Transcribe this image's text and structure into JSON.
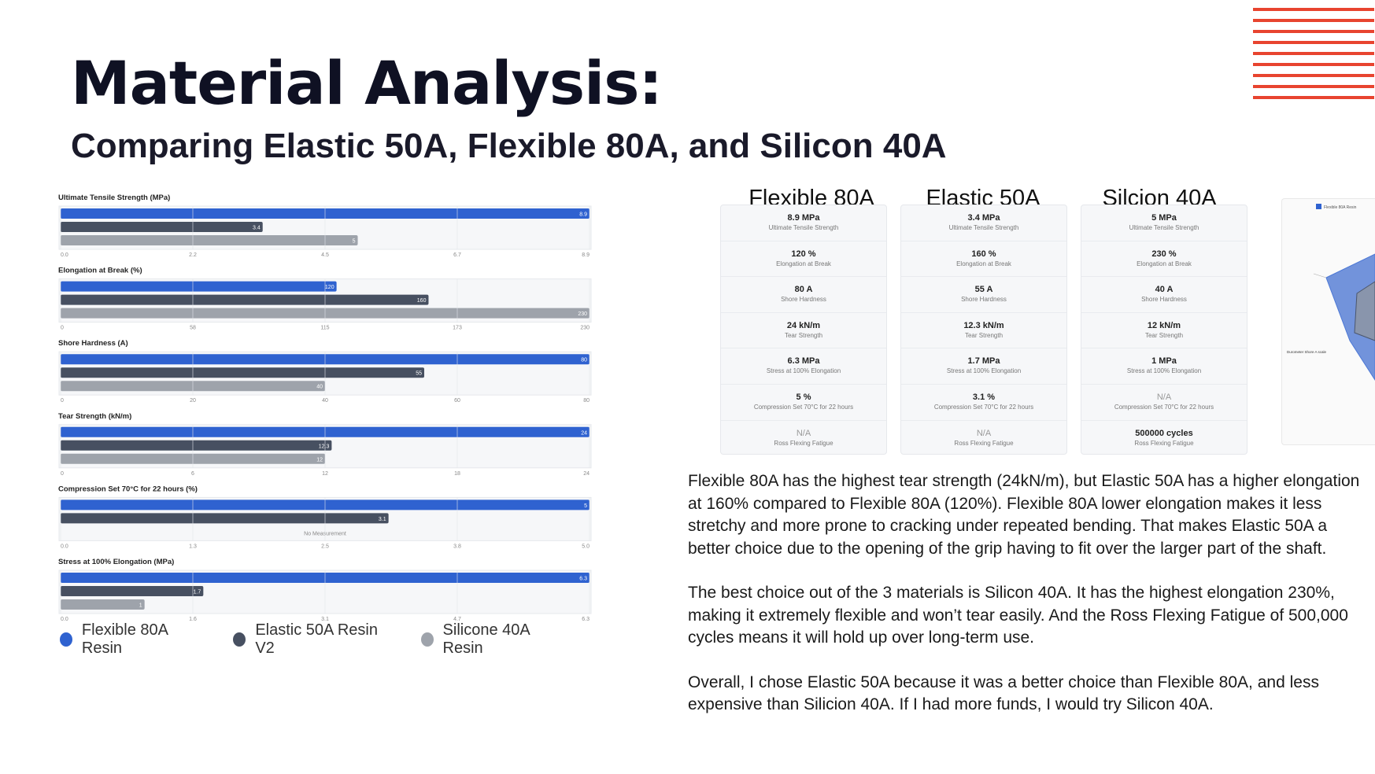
{
  "title": "Material Analysis:",
  "subtitle": "Comparing Elastic 50A, Flexible 80A, and Silicon 40A",
  "colors": {
    "flexible": "#2f62d0",
    "elastic": "#475061",
    "silicone": "#9ea3ab",
    "accent": "#e8442f"
  },
  "chart_data": {
    "type": "bar",
    "orientation": "horizontal",
    "legend_position": "bottom",
    "series_names": [
      "Flexible 80A Resin",
      "Elastic 50A Resin V2",
      "Silicone 40A Resin"
    ],
    "charts": [
      {
        "title": "Ultimate Tensile Strength (MPa)",
        "values": [
          8.9,
          3.4,
          5
        ],
        "labels": [
          "8.9",
          "3.4",
          "5"
        ],
        "xlim": [
          0,
          8.9
        ],
        "ticks": [
          "0.0",
          "2.2",
          "4.5",
          "6.7",
          "8.9"
        ],
        "no_measure": ""
      },
      {
        "title": "Elongation at Break (%)",
        "values": [
          120,
          160,
          230
        ],
        "labels": [
          "120",
          "160",
          "230"
        ],
        "xlim": [
          0,
          230
        ],
        "ticks": [
          "0",
          "58",
          "115",
          "173",
          "230"
        ],
        "no_measure": ""
      },
      {
        "title": "Shore Hardness (A)",
        "values": [
          80,
          55,
          40
        ],
        "labels": [
          "80",
          "55",
          "40"
        ],
        "xlim": [
          0,
          80
        ],
        "ticks": [
          "0",
          "20",
          "40",
          "60",
          "80"
        ],
        "no_measure": ""
      },
      {
        "title": "Tear Strength (kN/m)",
        "values": [
          24,
          12.3,
          12
        ],
        "labels": [
          "24",
          "12.3",
          "12"
        ],
        "xlim": [
          0,
          24
        ],
        "ticks": [
          "0",
          "6",
          "12",
          "18",
          "24"
        ],
        "no_measure": ""
      },
      {
        "title": "Compression Set 70°C for 22 hours (%)",
        "values": [
          5,
          3.1,
          null
        ],
        "labels": [
          "5",
          "3.1",
          ""
        ],
        "xlim": [
          0,
          5
        ],
        "ticks": [
          "0.0",
          "1.3",
          "2.5",
          "3.8",
          "5.0"
        ],
        "no_measure": "No Measurement"
      },
      {
        "title": "Stress at 100% Elongation (MPa)",
        "values": [
          6.3,
          1.7,
          1
        ],
        "labels": [
          "6.3",
          "1.7",
          "1"
        ],
        "xlim": [
          0,
          6.3
        ],
        "ticks": [
          "0.0",
          "1.6",
          "3.1",
          "4.7",
          "6.3"
        ],
        "no_measure": ""
      }
    ]
  },
  "table": {
    "columns": [
      {
        "name": "Flexible 80A",
        "cells": [
          {
            "value": "8.9 MPa",
            "label": "Ultimate Tensile Strength"
          },
          {
            "value": "120 %",
            "label": "Elongation at Break"
          },
          {
            "value": "80 A",
            "label": "Shore Hardness"
          },
          {
            "value": "24 kN/m",
            "label": "Tear Strength"
          },
          {
            "value": "6.3 MPa",
            "label": "Stress at 100% Elongation"
          },
          {
            "value": "5 %",
            "label": "Compression Set 70°C for 22 hours"
          },
          {
            "value": "N/A",
            "label": "Ross Flexing Fatigue"
          }
        ]
      },
      {
        "name": "Elastic 50A",
        "cells": [
          {
            "value": "3.4 MPa",
            "label": "Ultimate Tensile Strength"
          },
          {
            "value": "160 %",
            "label": "Elongation at Break"
          },
          {
            "value": "55 A",
            "label": "Shore Hardness"
          },
          {
            "value": "12.3 kN/m",
            "label": "Tear Strength"
          },
          {
            "value": "1.7 MPa",
            "label": "Stress at 100% Elongation"
          },
          {
            "value": "3.1 %",
            "label": "Compression Set 70°C for 22 hours"
          },
          {
            "value": "N/A",
            "label": "Ross Flexing Fatigue"
          }
        ]
      },
      {
        "name": "Silcion 40A",
        "cells": [
          {
            "value": "5 MPa",
            "label": "Ultimate Tensile Strength"
          },
          {
            "value": "230 %",
            "label": "Elongation at Break"
          },
          {
            "value": "40 A",
            "label": "Shore Hardness"
          },
          {
            "value": "12 kN/m",
            "label": "Tear Strength"
          },
          {
            "value": "1 MPa",
            "label": "Stress at 100% Elongation"
          },
          {
            "value": "N/A",
            "label": "Compression Set 70°C for 22 hours"
          },
          {
            "value": "500000 cycles",
            "label": "Ross Flexing Fatigue"
          }
        ]
      }
    ]
  },
  "radar": {
    "legend": "Flexible 80A Resin",
    "axis_label": "Durometer Shore A scale"
  },
  "paragraphs": [
    "Flexible 80A has the highest tear strength (24kN/m), but Elastic 50A has a higher elongation at 160% compared to Flexible 80A (120%). Flexible 80A lower elongation makes it less stretchy and more prone to cracking under repeated bending. That makes Elastic 50A a better choice due to the opening of the grip having to fit over the larger part of the shaft.",
    "The best choice out of the 3 materials is Silicon 40A. It has the highest elongation 230%, making it extremely flexible and won’t tear easily. And the Ross Flexing Fatigue of 500,000 cycles means it will hold up over long-term use.",
    "Overall, I chose Elastic 50A because it was a better choice than Flexible 80A, and less expensive than Silicion 40A. If I had more funds, I would try Silicon 40A."
  ]
}
